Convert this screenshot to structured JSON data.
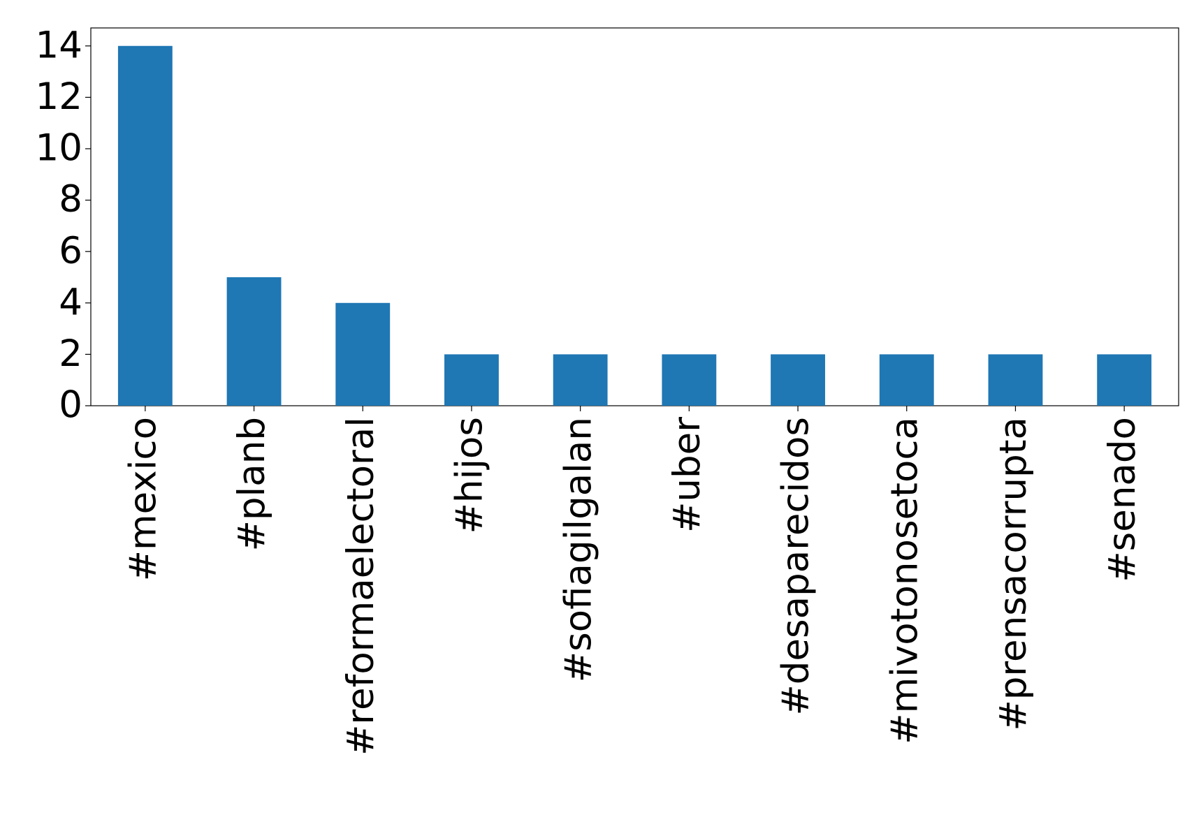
{
  "chart_data": {
    "type": "bar",
    "categories": [
      "#mexico",
      "#planb",
      "#reformaelectoral",
      "#hijos",
      "#sofiagilgalan",
      "#uber",
      "#desaparecidos",
      "#mivotonosetoca",
      "#prensacorrupta",
      "#senado"
    ],
    "values": [
      14,
      5,
      4,
      2,
      2,
      2,
      2,
      2,
      2,
      2
    ],
    "color": "#1f77b4",
    "ylim": [
      0,
      14.7
    ],
    "yticks": [
      0,
      2,
      4,
      6,
      8,
      10,
      12,
      14
    ],
    "grid": false
  }
}
